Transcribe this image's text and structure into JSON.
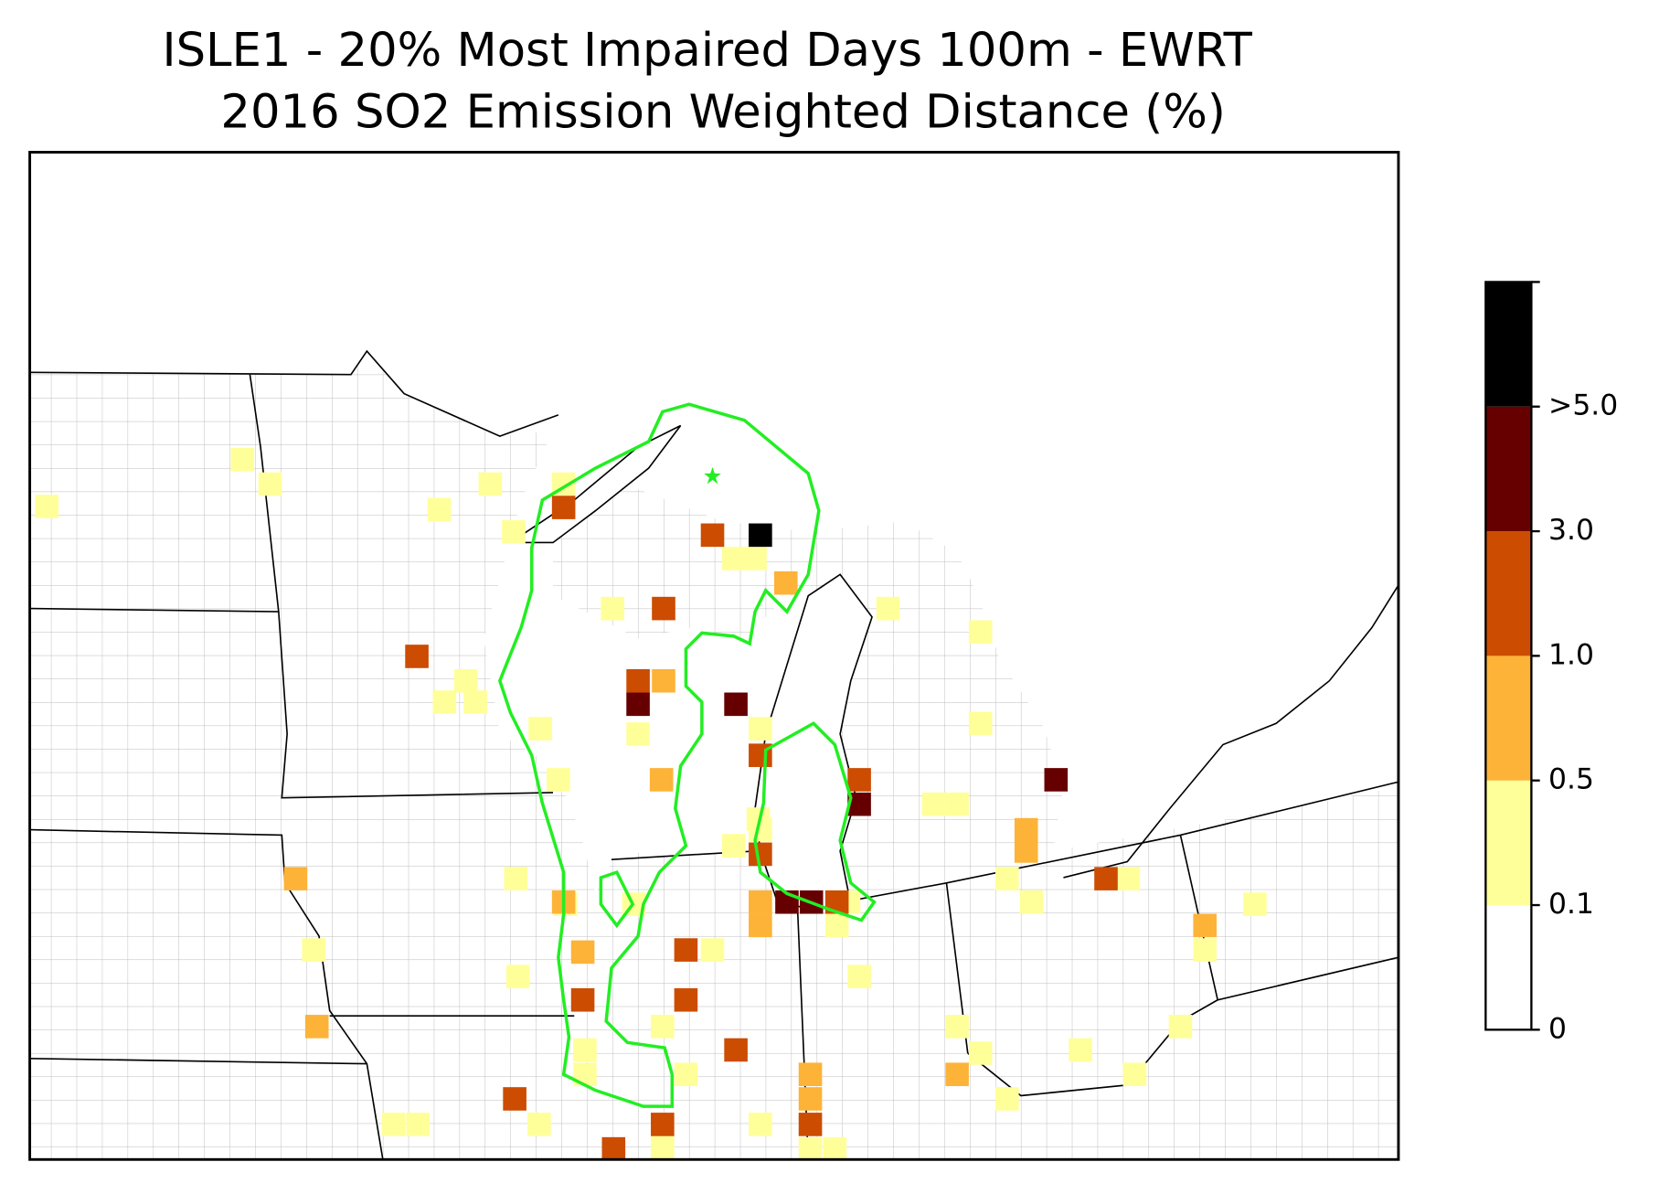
{
  "header": {
    "title_lines": [
      "ISLE1 - 20% Most Impaired Days 100m - EWRT",
      "2016 SO2 Emission Weighted Distance (%)"
    ]
  },
  "colorbar": {
    "colors": [
      "#ffffff",
      "#ffff99",
      "#fdb338",
      "#cc4c02",
      "#660000",
      "#000000"
    ],
    "ticks": [
      0,
      0.1,
      0.5,
      {
        "value": 1,
        "label": "1.0"
      },
      {
        "value": 3,
        "label": "3.0"
      },
      {
        "value": 5,
        "label": ">5.0"
      }
    ]
  },
  "contour_color": "#22ee22"
}
